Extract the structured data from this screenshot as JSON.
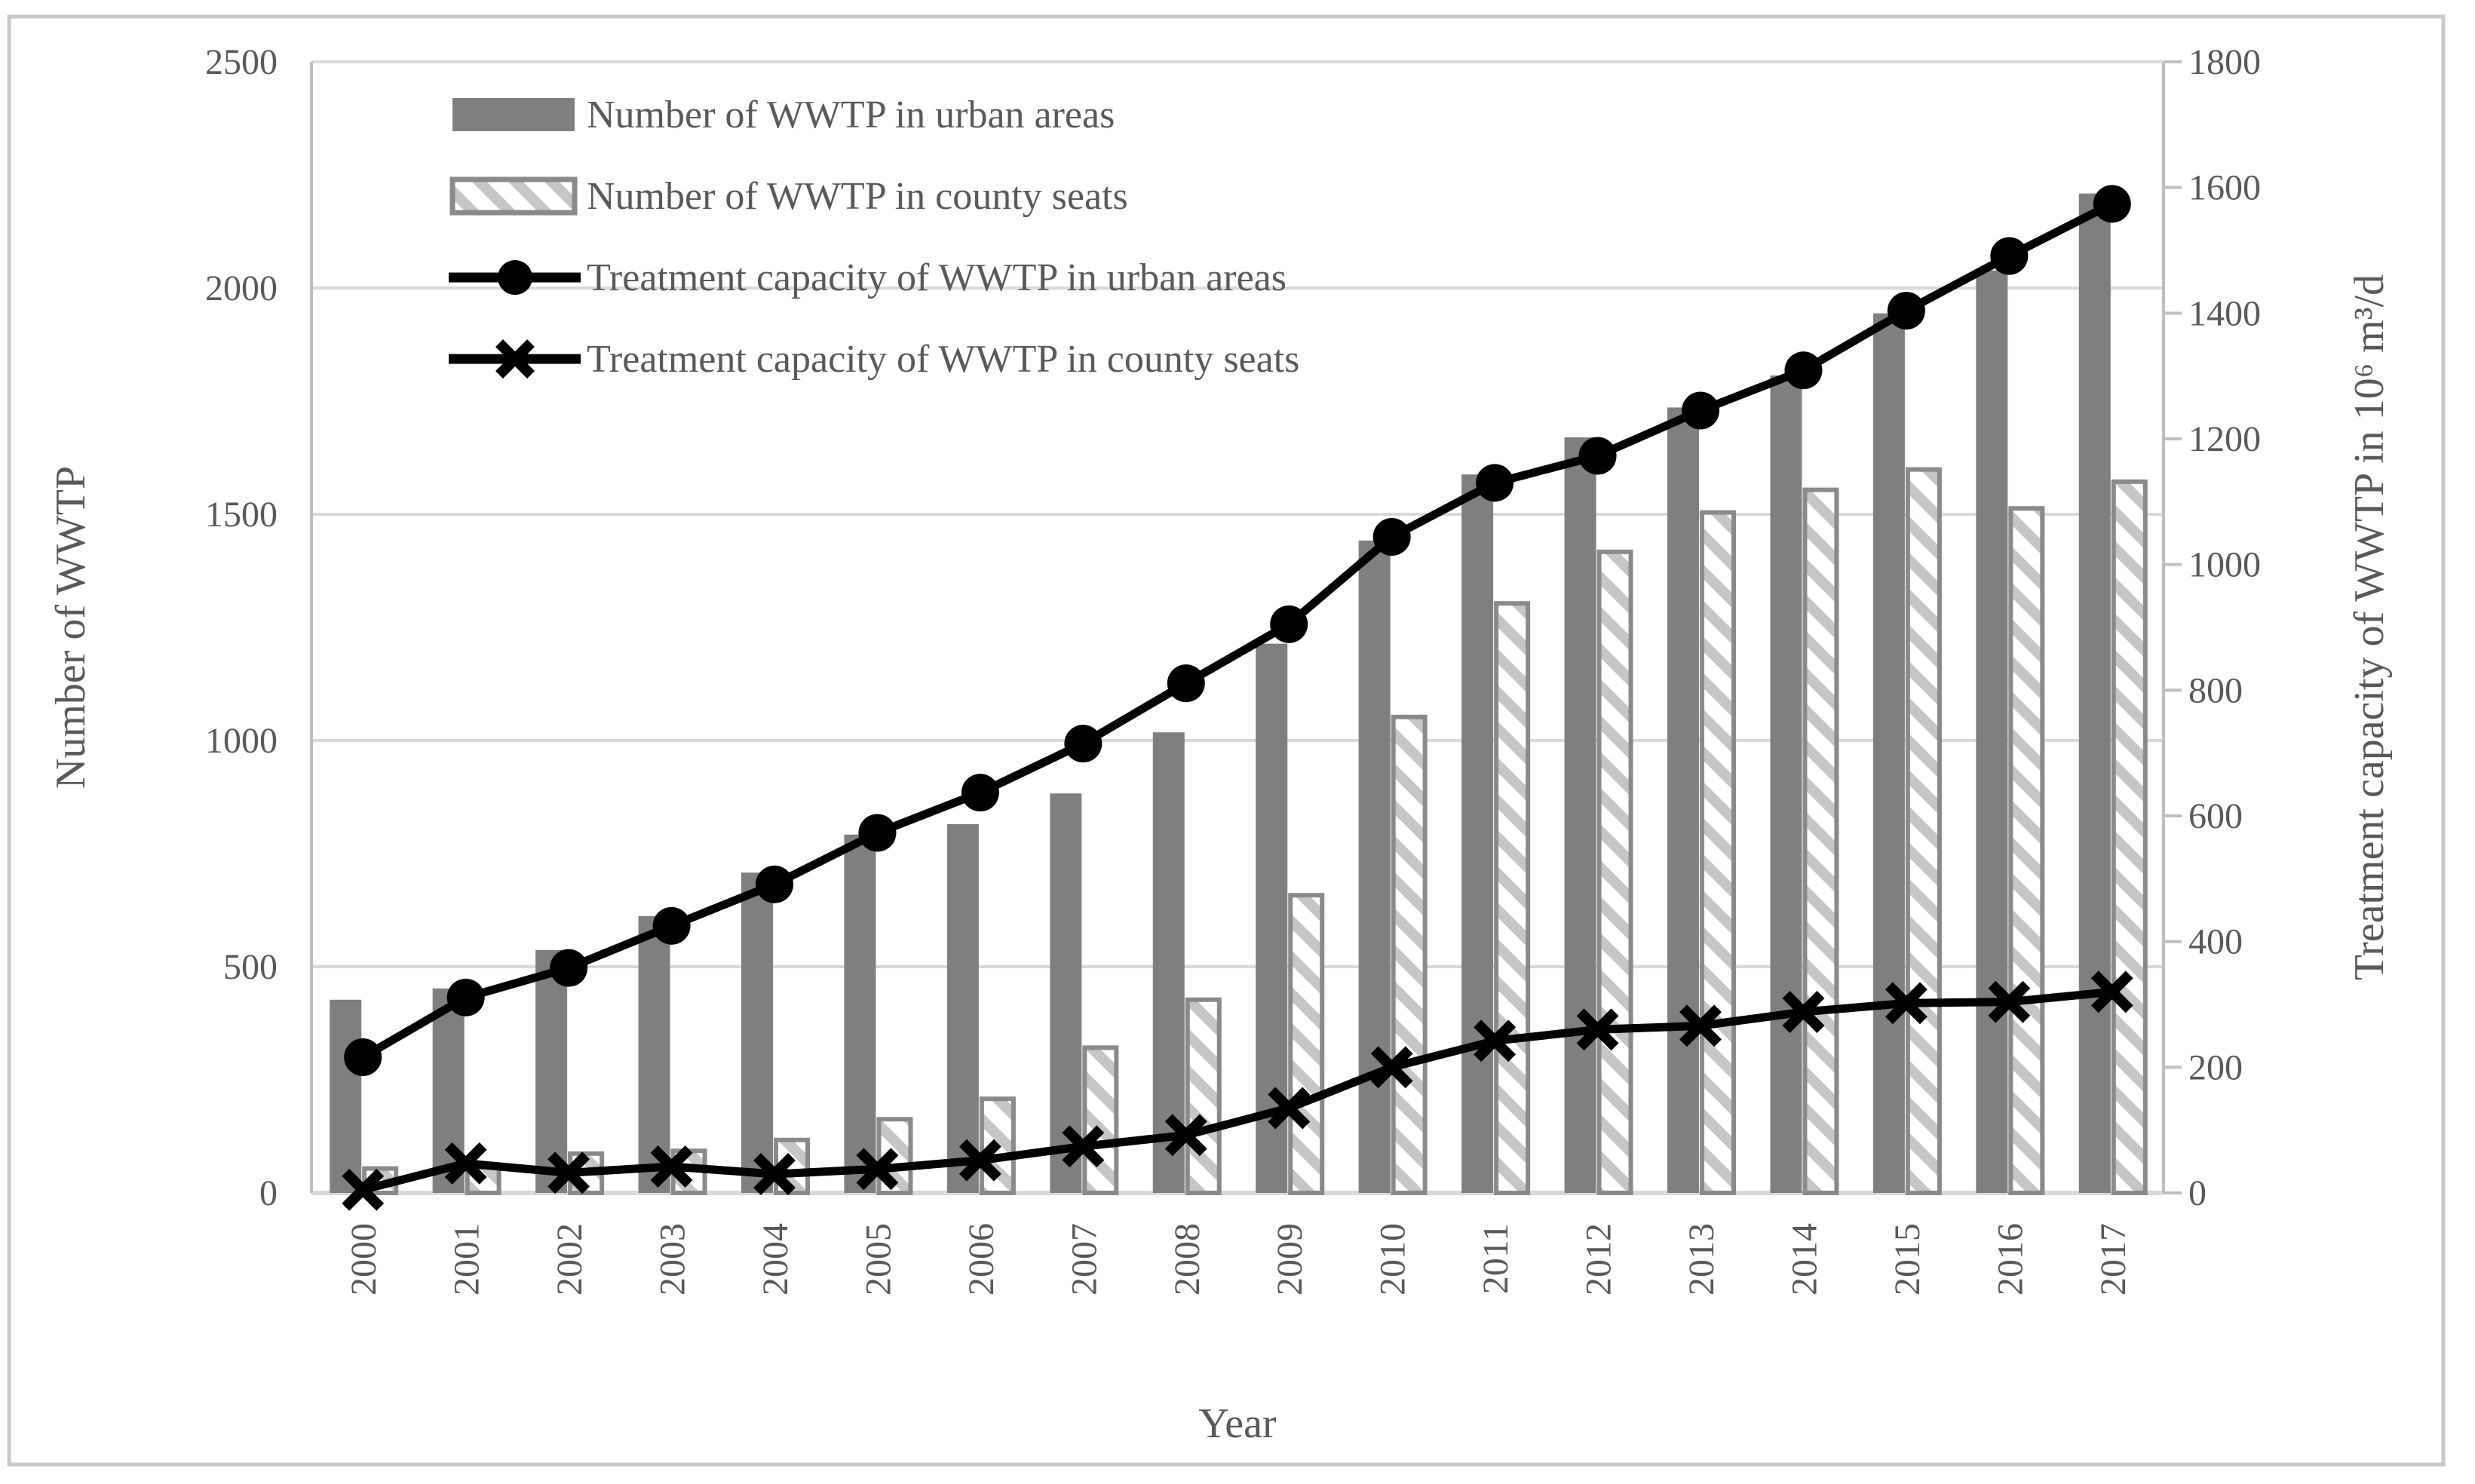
{
  "figure": {
    "background": "#ffffff",
    "border_color": "#c9c9c9",
    "text_color": "#595959",
    "gridline_color": "#d9d9d9",
    "axis_line_color": "#bfbfbf",
    "bar_solid_color": "#7f7f7f",
    "hatch_stripe_color": "#c6c6c6",
    "hatch_border_color": "#8a8a8a",
    "line_color": "#000000"
  },
  "chart_data": {
    "type": "combo-bar-line",
    "title": "",
    "xlabel": "Year",
    "x": [
      "2000",
      "2001",
      "2002",
      "2003",
      "2004",
      "2005",
      "2006",
      "2007",
      "2008",
      "2009",
      "2010",
      "2011",
      "2012",
      "2013",
      "2014",
      "2015",
      "2016",
      "2017"
    ],
    "left_axis": {
      "label": "Number of WWTP",
      "ticks": [
        0,
        500,
        1000,
        1500,
        2000,
        2500
      ],
      "range": [
        0,
        2500
      ]
    },
    "right_axis": {
      "label": "Treatment capacity of WWTP in 10⁶ m³/d",
      "ticks": [
        0,
        200,
        400,
        600,
        800,
        1000,
        1200,
        1400,
        1600,
        1800
      ],
      "range": [
        0,
        1800
      ]
    },
    "grid": "horizontal",
    "legend_position": "top-left-inside",
    "series": [
      {
        "name": "Number of WWTP in urban areas",
        "type": "bar",
        "style": "solid",
        "axis": "left",
        "values": [
          427,
          452,
          537,
          612,
          708,
          792,
          815,
          883,
          1018,
          1214,
          1442,
          1588,
          1670,
          1736,
          1807,
          1944,
          2039,
          2209
        ]
      },
      {
        "name": "Number of WWTP in county seats",
        "type": "bar",
        "style": "hatched",
        "axis": "left",
        "values": [
          54,
          57,
          87,
          93,
          117,
          163,
          208,
          321,
          427,
          658,
          1052,
          1303,
          1417,
          1504,
          1554,
          1599,
          1513,
          1572
        ]
      },
      {
        "name": "Treatment capacity of WWTP in urban areas",
        "type": "line",
        "marker": "circle",
        "axis": "right",
        "values": [
          216,
          311,
          358,
          425,
          491,
          573,
          637,
          715,
          811,
          905,
          1044,
          1130,
          1173,
          1245,
          1309,
          1404,
          1491,
          1574
        ]
      },
      {
        "name": "Treatment capacity of WWTP in county seats",
        "type": "line",
        "marker": "x",
        "axis": "right",
        "values": [
          5,
          47,
          32,
          42,
          30,
          38,
          52,
          74,
          92,
          135,
          200,
          242,
          260,
          266,
          288,
          302,
          304,
          320
        ]
      }
    ]
  }
}
